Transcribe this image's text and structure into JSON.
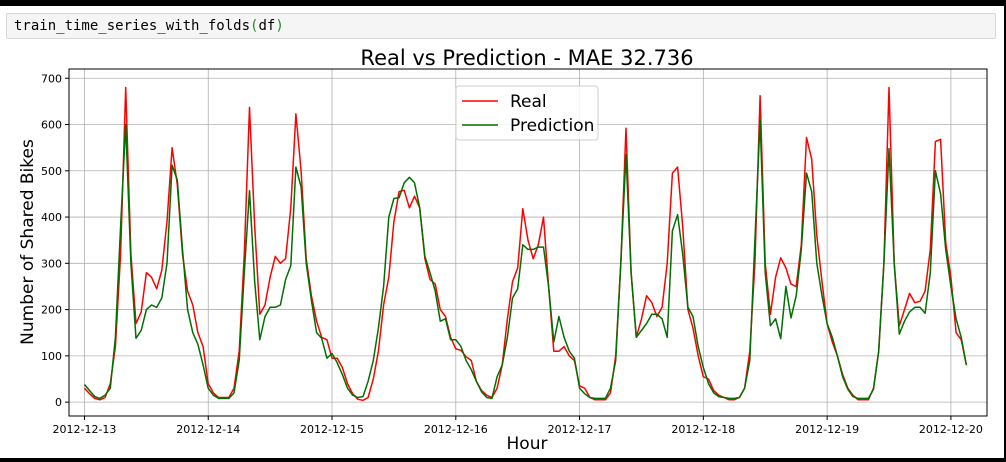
{
  "notebook": {
    "code_function": "train_time_series_with_folds",
    "code_arg": "df"
  },
  "chart_data": {
    "type": "line",
    "title": "Real vs Prediction - MAE 32.736",
    "xlabel": "Hour",
    "ylabel": "Number of Shared Bikes",
    "xlim": [
      "2012-12-12T21:00",
      "2012-12-20T07:00"
    ],
    "ylim": [
      -30,
      720
    ],
    "yticks": [
      0,
      100,
      200,
      300,
      400,
      500,
      600,
      700
    ],
    "xticks": [
      "2012-12-13",
      "2012-12-14",
      "2012-12-15",
      "2012-12-16",
      "2012-12-17",
      "2012-12-18",
      "2012-12-19",
      "2012-12-20"
    ],
    "grid": true,
    "legend_position": "upper center",
    "x_start": "2012-12-13T00:00",
    "x_step": "1 hour",
    "series": [
      {
        "name": "Real",
        "color": "#ff0000",
        "values": [
          30,
          18,
          8,
          5,
          10,
          40,
          120,
          320,
          680,
          320,
          170,
          195,
          280,
          270,
          245,
          285,
          390,
          550,
          470,
          320,
          240,
          210,
          150,
          120,
          40,
          20,
          10,
          10,
          10,
          30,
          110,
          320,
          637,
          380,
          190,
          210,
          270,
          315,
          300,
          310,
          420,
          623,
          500,
          310,
          230,
          175,
          140,
          135,
          95,
          95,
          75,
          40,
          18,
          6,
          4,
          10,
          50,
          110,
          210,
          270,
          390,
          455,
          458,
          420,
          445,
          420,
          310,
          265,
          255,
          200,
          185,
          140,
          115,
          112,
          98,
          90,
          45,
          25,
          15,
          10,
          30,
          80,
          180,
          260,
          290,
          418,
          350,
          310,
          340,
          400,
          250,
          110,
          110,
          120,
          100,
          90,
          35,
          30,
          10,
          5,
          5,
          5,
          20,
          100,
          300,
          592,
          280,
          140,
          180,
          230,
          215,
          185,
          205,
          300,
          495,
          508,
          380,
          200,
          160,
          100,
          55,
          50,
          25,
          15,
          10,
          5,
          5,
          10,
          30,
          110,
          300,
          662,
          300,
          190,
          270,
          312,
          290,
          255,
          250,
          340,
          572,
          525,
          360,
          260,
          170,
          130,
          100,
          60,
          30,
          15,
          5,
          5,
          5,
          30,
          110,
          300,
          680,
          300,
          165,
          200,
          235,
          215,
          218,
          240,
          330,
          563,
          568,
          345,
          270,
          150,
          135,
          80
        ]
      },
      {
        "name": "Prediction",
        "color": "#007000",
        "values": [
          38,
          25,
          12,
          8,
          15,
          30,
          140,
          380,
          600,
          300,
          138,
          155,
          200,
          210,
          205,
          225,
          300,
          512,
          480,
          330,
          200,
          150,
          125,
          80,
          30,
          15,
          8,
          8,
          8,
          20,
          90,
          280,
          457,
          260,
          135,
          185,
          205,
          205,
          210,
          265,
          295,
          508,
          465,
          300,
          220,
          150,
          138,
          95,
          105,
          85,
          60,
          30,
          15,
          10,
          12,
          45,
          90,
          160,
          250,
          400,
          440,
          442,
          474,
          486,
          474,
          420,
          315,
          280,
          240,
          175,
          180,
          135,
          135,
          120,
          90,
          70,
          45,
          22,
          10,
          8,
          55,
          80,
          140,
          225,
          245,
          340,
          330,
          330,
          335,
          335,
          250,
          130,
          185,
          140,
          110,
          95,
          30,
          18,
          10,
          8,
          8,
          8,
          30,
          90,
          300,
          535,
          280,
          140,
          155,
          170,
          190,
          190,
          180,
          140,
          370,
          405,
          320,
          205,
          185,
          120,
          75,
          40,
          20,
          12,
          10,
          8,
          8,
          10,
          30,
          90,
          350,
          610,
          280,
          165,
          180,
          137,
          250,
          182,
          230,
          330,
          495,
          455,
          300,
          230,
          170,
          140,
          100,
          55,
          28,
          12,
          8,
          8,
          8,
          28,
          110,
          300,
          548,
          300,
          147,
          175,
          195,
          205,
          205,
          192,
          280,
          500,
          450,
          330,
          250,
          180,
          140,
          80
        ]
      }
    ]
  }
}
